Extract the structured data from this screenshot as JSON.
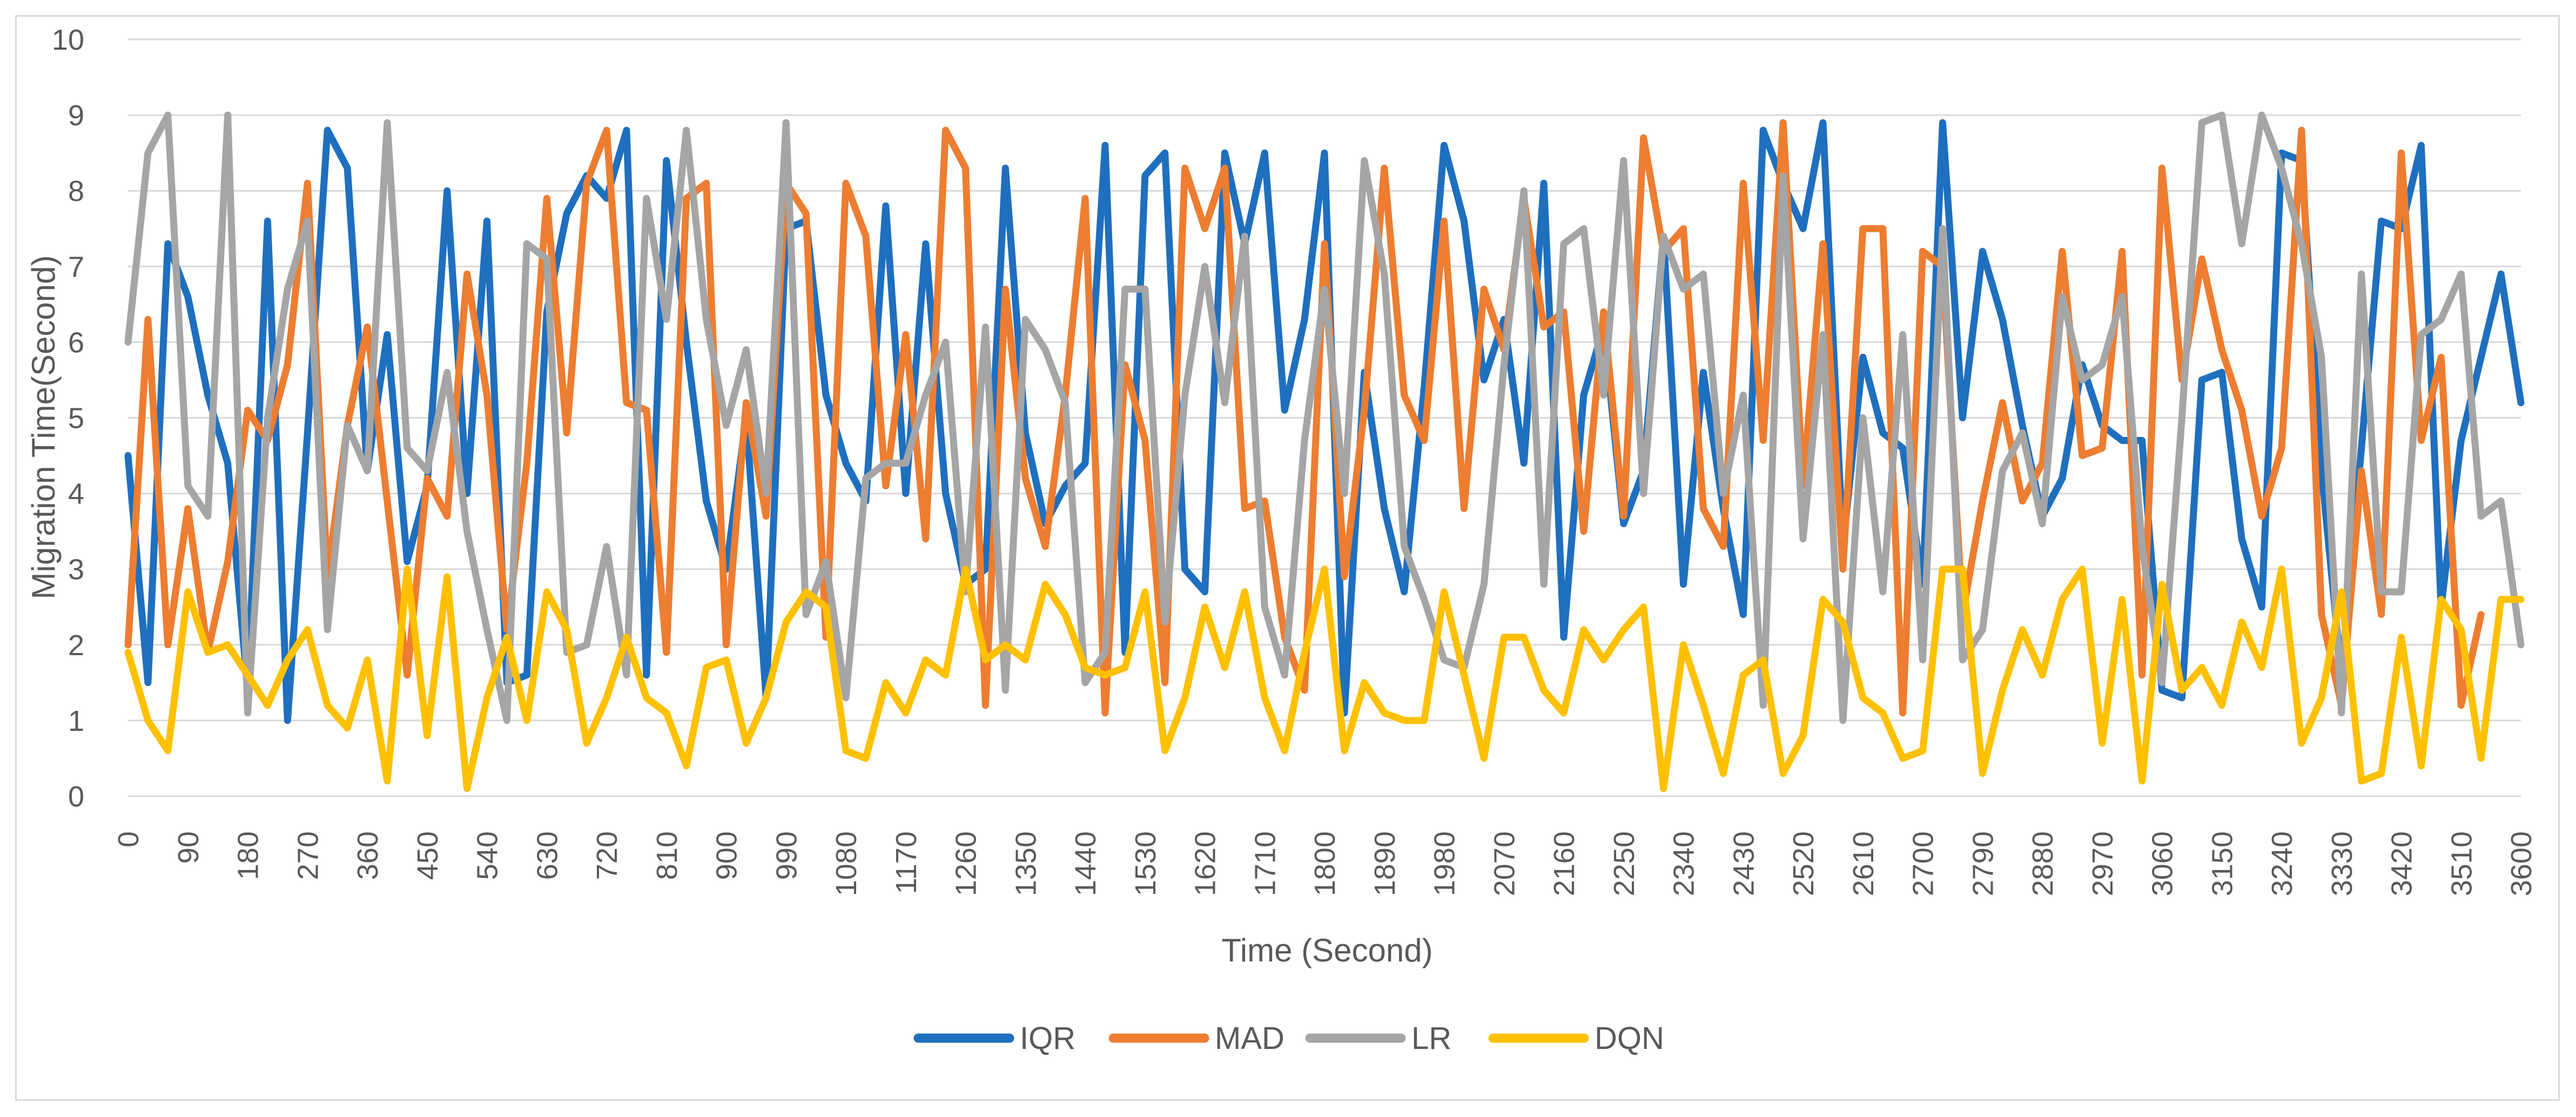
{
  "chart_data": {
    "type": "line",
    "title": "",
    "xlabel": "Time (Second)",
    "ylabel": "Migration Time(Second)",
    "xlim": [
      0,
      3600
    ],
    "ylim": [
      0,
      10
    ],
    "x_ticks": [
      0,
      90,
      180,
      270,
      360,
      450,
      540,
      630,
      720,
      810,
      900,
      990,
      1080,
      1170,
      1260,
      1350,
      1440,
      1530,
      1620,
      1710,
      1800,
      1890,
      1980,
      2070,
      2160,
      2250,
      2340,
      2430,
      2520,
      2610,
      2700,
      2790,
      2880,
      2970,
      3060,
      3150,
      3240,
      3330,
      3420,
      3510,
      3600
    ],
    "y_ticks": [
      0,
      1,
      2,
      3,
      4,
      5,
      6,
      7,
      8,
      9,
      10
    ],
    "x_step": 30,
    "grid": "horizontal",
    "legend_position": "bottom",
    "series": [
      {
        "name": "IQR",
        "color": "#1f6fbf",
        "values": [
          4.5,
          1.5,
          7.3,
          6.6,
          5.3,
          4.4,
          1.4,
          7.6,
          1.0,
          4.8,
          8.8,
          8.3,
          4.3,
          6.1,
          3.1,
          4.1,
          8.0,
          4.0,
          7.6,
          1.5,
          1.6,
          6.4,
          7.7,
          8.2,
          7.9,
          8.8,
          1.6,
          8.4,
          6.0,
          3.9,
          3.0,
          5.0,
          1.3,
          7.5,
          7.6,
          5.3,
          4.4,
          3.9,
          7.8,
          4.0,
          7.3,
          4.0,
          2.8,
          3.0,
          8.3,
          4.8,
          3.6,
          4.1,
          4.4,
          8.6,
          1.9,
          8.2,
          8.5,
          3.0,
          2.7,
          8.5,
          7.3,
          8.5,
          5.1,
          6.3,
          8.5,
          1.1,
          5.6,
          3.8,
          2.7,
          5.4,
          8.6,
          7.6,
          5.5,
          6.3,
          4.4,
          8.1,
          2.1,
          5.3,
          6.2,
          3.6,
          4.3,
          7.4,
          2.8,
          5.6,
          3.8,
          2.4,
          8.8,
          8.1,
          7.5,
          8.9,
          3.3,
          5.8,
          4.8,
          4.6,
          2.8,
          8.9,
          5.0,
          7.2,
          6.3,
          4.9,
          3.7,
          4.2,
          5.7,
          4.9,
          4.7,
          4.7,
          1.4,
          1.3,
          5.5,
          5.6,
          3.4,
          2.5,
          8.5,
          8.4,
          4.3,
          1.6,
          4.6,
          7.6,
          7.5,
          8.6,
          2.5,
          4.7,
          5.8,
          6.9,
          5.2
        ]
      },
      {
        "name": "MAD",
        "color": "#ed7d31",
        "values": [
          2.0,
          6.3,
          2.0,
          3.8,
          1.9,
          3.1,
          5.1,
          4.7,
          5.7,
          8.1,
          2.9,
          4.9,
          6.2,
          3.9,
          1.6,
          4.2,
          3.7,
          6.9,
          5.3,
          2.2,
          4.4,
          7.9,
          4.8,
          8.1,
          8.8,
          5.2,
          5.1,
          1.9,
          7.9,
          8.1,
          2.0,
          5.2,
          3.7,
          8.1,
          7.7,
          2.1,
          8.1,
          7.4,
          4.1,
          6.1,
          3.4,
          8.8,
          8.3,
          1.2,
          6.7,
          4.2,
          3.3,
          5.3,
          7.9,
          1.1,
          5.7,
          4.7,
          1.5,
          8.3,
          7.5,
          8.3,
          3.8,
          3.9,
          2.1,
          1.4,
          7.3,
          2.9,
          5.1,
          8.3,
          5.3,
          4.7,
          7.6,
          3.8,
          6.7,
          5.9,
          7.9,
          6.2,
          6.4,
          3.5,
          6.4,
          3.7,
          8.7,
          7.2,
          7.5,
          3.8,
          3.3,
          8.1,
          4.7,
          8.9,
          4.1,
          7.3,
          3.0,
          7.5,
          7.5,
          1.1,
          7.2,
          7.0,
          2.4,
          3.9,
          5.2,
          3.9,
          4.4,
          7.2,
          4.5,
          4.6,
          7.2,
          1.6,
          8.3,
          5.5,
          7.1,
          5.9,
          5.1,
          3.7,
          4.6,
          8.8,
          2.4,
          1.2,
          4.3,
          2.4,
          8.5,
          4.7,
          5.8,
          1.2,
          2.4
        ]
      },
      {
        "name": "LR",
        "color": "#a5a5a5",
        "values": [
          6.0,
          8.5,
          9.0,
          4.1,
          3.7,
          9.0,
          1.1,
          5.0,
          6.7,
          7.6,
          2.2,
          4.9,
          4.3,
          8.9,
          4.6,
          4.3,
          5.6,
          3.5,
          2.2,
          1.0,
          7.3,
          7.1,
          1.9,
          2.0,
          3.3,
          1.6,
          7.9,
          6.3,
          8.8,
          6.3,
          4.9,
          5.9,
          4.0,
          8.9,
          2.4,
          3.1,
          1.3,
          4.2,
          4.4,
          4.4,
          5.3,
          6.0,
          2.7,
          6.2,
          1.4,
          6.3,
          5.9,
          5.2,
          1.5,
          1.9,
          6.7,
          6.7,
          2.3,
          5.3,
          7.0,
          5.2,
          7.4,
          2.5,
          1.6,
          4.7,
          6.7,
          4.0,
          8.4,
          6.9,
          3.3,
          2.6,
          1.8,
          1.7,
          2.8,
          5.7,
          8.0,
          2.8,
          7.3,
          7.5,
          5.3,
          8.4,
          4.0,
          7.4,
          6.7,
          6.9,
          4.0,
          5.3,
          1.2,
          8.2,
          3.4,
          6.1,
          1.0,
          5.0,
          2.7,
          6.1,
          1.8,
          7.5,
          1.8,
          2.2,
          4.3,
          4.8,
          3.6,
          6.6,
          5.5,
          5.7,
          6.6,
          3.3,
          1.5,
          5.0,
          8.9,
          9.0,
          7.3,
          9.0,
          8.3,
          7.3,
          5.8,
          1.1,
          6.9,
          2.7,
          2.7,
          6.1,
          6.3,
          6.9,
          3.7,
          3.9,
          2.0
        ]
      },
      {
        "name": "DQN",
        "color": "#ffc000",
        "values": [
          1.9,
          1.0,
          0.6,
          2.7,
          1.9,
          2.0,
          1.6,
          1.2,
          1.8,
          2.2,
          1.2,
          0.9,
          1.8,
          0.2,
          3.0,
          0.8,
          2.9,
          0.1,
          1.3,
          2.1,
          1.0,
          2.7,
          2.2,
          0.7,
          1.3,
          2.1,
          1.3,
          1.1,
          0.4,
          1.7,
          1.8,
          0.7,
          1.3,
          2.3,
          2.7,
          2.5,
          0.6,
          0.5,
          1.5,
          1.1,
          1.8,
          1.6,
          3.0,
          1.8,
          2.0,
          1.8,
          2.8,
          2.4,
          1.7,
          1.6,
          1.7,
          2.7,
          0.6,
          1.3,
          2.5,
          1.7,
          2.7,
          1.3,
          0.6,
          1.9,
          3.0,
          0.6,
          1.5,
          1.1,
          1.0,
          1.0,
          2.7,
          1.6,
          0.5,
          2.1,
          2.1,
          1.4,
          1.1,
          2.2,
          1.8,
          2.2,
          2.5,
          0.1,
          2.0,
          1.2,
          0.3,
          1.6,
          1.8,
          0.3,
          0.8,
          2.6,
          2.3,
          1.3,
          1.1,
          0.5,
          0.6,
          3.0,
          3.0,
          0.3,
          1.4,
          2.2,
          1.6,
          2.6,
          3.0,
          0.7,
          2.6,
          0.2,
          2.8,
          1.4,
          1.7,
          1.2,
          2.3,
          1.7,
          3.0,
          0.7,
          1.3,
          2.7,
          0.2,
          0.3,
          2.1,
          0.4,
          2.6,
          2.2,
          0.5,
          2.6,
          2.6
        ]
      }
    ]
  }
}
